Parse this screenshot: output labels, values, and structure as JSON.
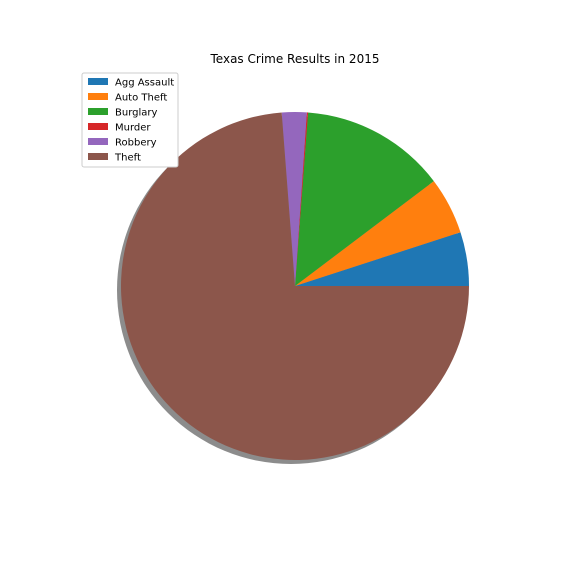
{
  "chart_data": {
    "type": "pie",
    "title": "Texas Crime Results in 2015",
    "categories": [
      "Agg Assault",
      "Auto Theft",
      "Burglary",
      "Murder",
      "Robbery",
      "Theft"
    ],
    "values": [
      5.0,
      5.3,
      13.5,
      0.12,
      2.3,
      73.78
    ],
    "colors": [
      "#1f77b4",
      "#ff7f0e",
      "#2ca02c",
      "#d62728",
      "#9467bd",
      "#8c564b"
    ],
    "start_angle_deg": 0,
    "direction": "counterclockwise",
    "shadow": true,
    "legend_position": "upper-left"
  }
}
